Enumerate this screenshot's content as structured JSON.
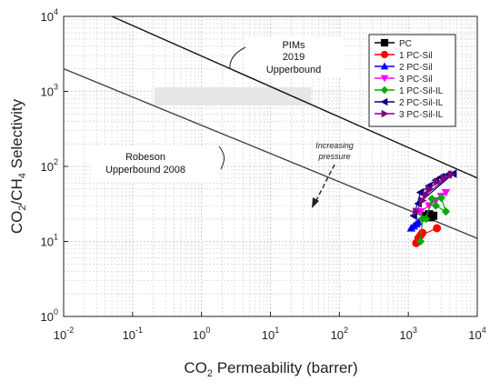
{
  "chart_data": {
    "type": "scatter",
    "xlabel_main": "CO",
    "xlabel_sub": "2",
    "xlabel_rest": " Permeability (barrer)",
    "ylabel_parts": [
      "CO",
      "2",
      "/CH",
      "4",
      " Selectivity"
    ],
    "xscale": "log",
    "yscale": "log",
    "xlim": [
      0.01,
      10000
    ],
    "ylim": [
      1,
      10000
    ],
    "x_ticks": [
      {
        "value": 0.01,
        "base": "10",
        "exp": "-2"
      },
      {
        "value": 0.1,
        "base": "10",
        "exp": "-1"
      },
      {
        "value": 1,
        "base": "10",
        "exp": "0"
      },
      {
        "value": 10,
        "base": "10",
        "exp": "1"
      },
      {
        "value": 100,
        "base": "10",
        "exp": "2"
      },
      {
        "value": 1000,
        "base": "10",
        "exp": "3"
      },
      {
        "value": 10000,
        "base": "10",
        "exp": "4"
      }
    ],
    "y_ticks": [
      {
        "value": 1,
        "base": "10",
        "exp": "0"
      },
      {
        "value": 10,
        "base": "10",
        "exp": "1"
      },
      {
        "value": 100,
        "base": "10",
        "exp": "2"
      },
      {
        "value": 1000,
        "base": "10",
        "exp": "3"
      },
      {
        "value": 10000,
        "base": "10",
        "exp": "4"
      }
    ],
    "grid": true,
    "legend_position": "upper-right",
    "upperbounds": [
      {
        "name": "PIMs 2019 Upperbound",
        "points": [
          [
            0.05,
            10000
          ],
          [
            10000,
            70
          ]
        ]
      },
      {
        "name": "Robeson Upperbound 2008",
        "points": [
          [
            0.01,
            2000
          ],
          [
            10000,
            11
          ]
        ]
      }
    ],
    "annotations": {
      "pims_line1": "PIMs",
      "pims_line2": "2019",
      "pims_line3": "Upperbound",
      "robeson_line1": "Robeson",
      "robeson_line2": "Upperbound 2008",
      "increasing_line1": "Increasing",
      "increasing_line2": "pressure"
    },
    "series": [
      {
        "name": "PC",
        "color": "#000000",
        "marker": "square",
        "points": [
          [
            1800,
            22
          ],
          [
            2100,
            21
          ],
          [
            2300,
            22
          ],
          [
            2000,
            23
          ]
        ]
      },
      {
        "name": "1 PC-Sil",
        "color": "#ff0000",
        "marker": "circle",
        "points": [
          [
            1300,
            9.5
          ],
          [
            1400,
            11
          ],
          [
            1600,
            13
          ],
          [
            1500,
            12
          ],
          [
            2600,
            15
          ]
        ]
      },
      {
        "name": "2 PC-Sil",
        "color": "#0000ff",
        "marker": "triangle-up",
        "points": [
          [
            1100,
            15
          ],
          [
            1300,
            17
          ],
          [
            1400,
            18
          ],
          [
            1200,
            16
          ]
        ]
      },
      {
        "name": "3 PC-Sil",
        "color": "#ff00ff",
        "marker": "triangle-down",
        "points": [
          [
            1500,
            25
          ],
          [
            2000,
            30
          ],
          [
            2500,
            35
          ],
          [
            3500,
            45
          ],
          [
            3000,
            40
          ]
        ]
      },
      {
        "name": "1 PC-Sil-IL",
        "color": "#00aa00",
        "marker": "diamond",
        "points": [
          [
            1500,
            10
          ],
          [
            1600,
            20
          ],
          [
            1800,
            20
          ],
          [
            2200,
            37
          ],
          [
            3000,
            38
          ],
          [
            3500,
            25
          ],
          [
            2500,
            30
          ]
        ]
      },
      {
        "name": "2 PC-Sil-IL",
        "color": "#000080",
        "marker": "triangle-left",
        "points": [
          [
            1200,
            22
          ],
          [
            1500,
            45
          ],
          [
            2000,
            55
          ],
          [
            2500,
            65
          ],
          [
            3000,
            72
          ],
          [
            3800,
            78
          ],
          [
            4500,
            80
          ],
          [
            1400,
            32
          ]
        ]
      },
      {
        "name": "3 PC-Sil-IL",
        "color": "#800080",
        "marker": "triangle-right",
        "points": [
          [
            1300,
            25
          ],
          [
            1600,
            35
          ],
          [
            2000,
            50
          ],
          [
            2600,
            62
          ],
          [
            3300,
            70
          ],
          [
            4200,
            78
          ],
          [
            1800,
            42
          ]
        ]
      }
    ]
  }
}
